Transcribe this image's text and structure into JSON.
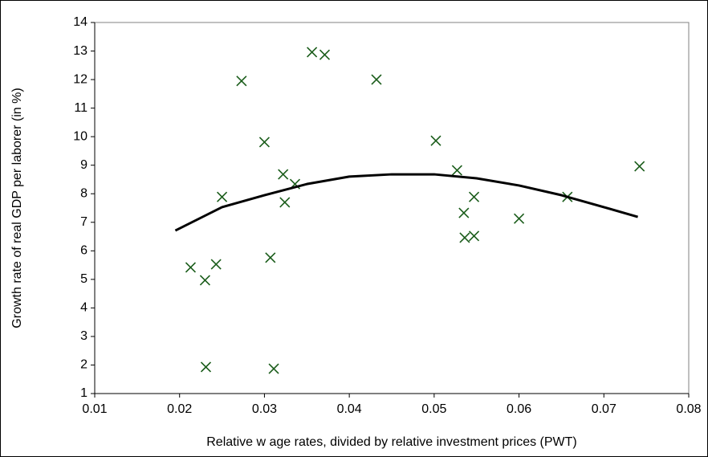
{
  "chart_data": {
    "type": "scatter",
    "x_label": "Relative w age rates, divided by relative investment prices (PWT)",
    "y_label": "Growth rate of real GDP per laborer (in %)",
    "xlim": [
      0.01,
      0.08
    ],
    "xticks": [
      0.01,
      0.02,
      0.03,
      0.04,
      0.05,
      0.06,
      0.07,
      0.08
    ],
    "ylim": [
      1,
      14
    ],
    "yticks": [
      1,
      2,
      3,
      4,
      5,
      6,
      7,
      8,
      9,
      10,
      11,
      12,
      13,
      14
    ],
    "series": [
      {
        "type": "scatter",
        "color": "#1a5c1a",
        "x": [
          0.0213,
          0.023,
          0.0243,
          0.0231,
          0.025,
          0.0273,
          0.03,
          0.0307,
          0.0322,
          0.0336,
          0.0324,
          0.0311,
          0.0356,
          0.0371,
          0.0432,
          0.0502,
          0.0527,
          0.0535,
          0.0547,
          0.0536,
          0.0547,
          0.06,
          0.0657,
          0.0742
        ],
        "y": [
          5.42,
          4.97,
          5.53,
          1.93,
          7.89,
          11.95,
          9.81,
          5.76,
          8.68,
          8.34,
          7.7,
          1.87,
          12.96,
          12.87,
          12.0,
          9.86,
          8.82,
          7.33,
          7.89,
          6.46,
          6.52,
          7.13,
          7.89,
          8.96
        ]
      },
      {
        "type": "line",
        "color": "#000000",
        "x": [
          0.0195,
          0.025,
          0.03,
          0.035,
          0.04,
          0.045,
          0.05,
          0.055,
          0.06,
          0.065,
          0.07,
          0.074
        ],
        "y": [
          6.71,
          7.53,
          7.95,
          8.34,
          8.6,
          8.68,
          8.68,
          8.54,
          8.29,
          7.95,
          7.53,
          7.19
        ]
      }
    ]
  }
}
